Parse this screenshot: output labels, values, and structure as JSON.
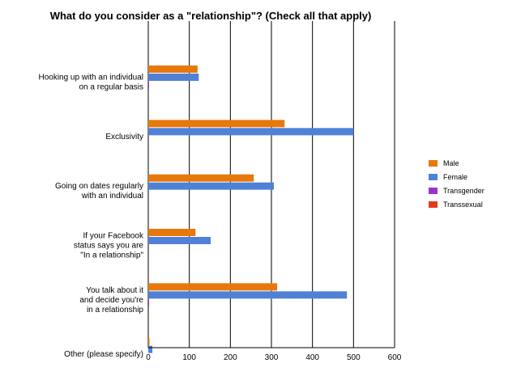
{
  "chart_data": {
    "type": "bar",
    "orientation": "horizontal",
    "title": "What do you consider as a \"relationship\"? (Check all that apply)",
    "xlabel": "",
    "ylabel": "",
    "xlim": [
      0,
      600
    ],
    "x_ticks": [
      0,
      100,
      200,
      300,
      400,
      500,
      600
    ],
    "grid": true,
    "legend_position": "right",
    "categories": [
      [
        "Hooking up with an individual",
        "on a regular basis"
      ],
      [
        "Exclusivity"
      ],
      [
        "Going on dates regularly",
        "with an individual"
      ],
      [
        "If your Facebook",
        "status says you are",
        "\"In a relationship\""
      ],
      [
        "You talk about it",
        "and decide you're",
        "in a relationship"
      ],
      [
        "Other (please specify)"
      ]
    ],
    "series": [
      {
        "name": "Male",
        "color": "#e8780c",
        "values": [
          120,
          332,
          257,
          115,
          314,
          3
        ]
      },
      {
        "name": "Female",
        "color": "#4f81d6",
        "values": [
          123,
          500,
          306,
          152,
          484,
          10
        ]
      },
      {
        "name": "Transgender",
        "color": "#9933cc",
        "values": [
          2,
          0,
          0,
          0,
          2,
          0
        ]
      },
      {
        "name": "Transsexual",
        "color": "#e03c1c",
        "values": [
          0,
          0,
          0,
          0,
          0,
          0
        ]
      }
    ]
  }
}
